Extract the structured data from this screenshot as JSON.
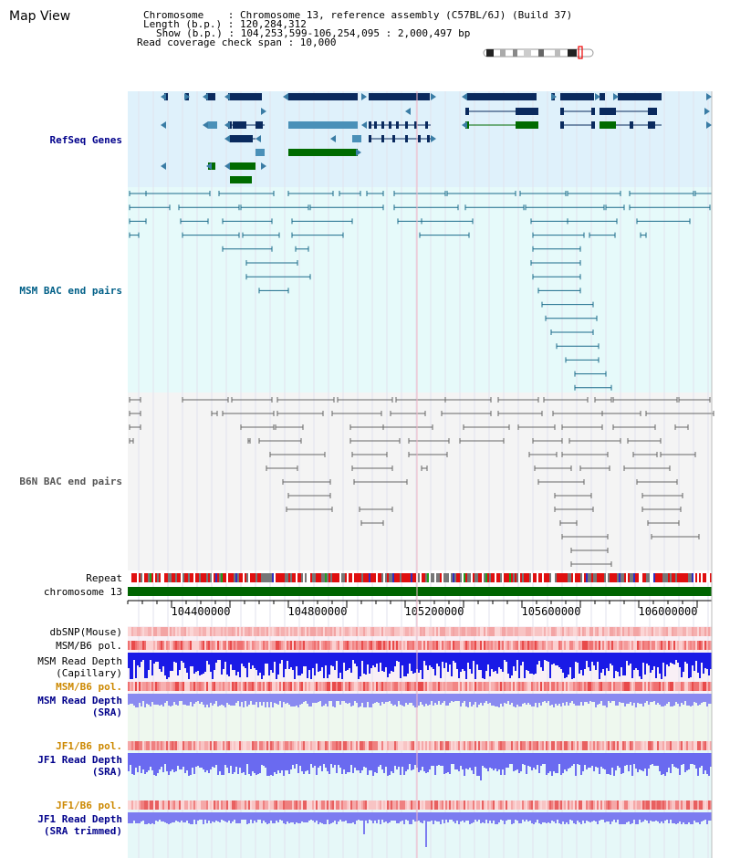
{
  "title": "Map View",
  "info": {
    "chromosome_key": "Chromosome",
    "chromosome_val": ": Chromosome 13, reference assembly (C57BL/6J) (Build 37)",
    "length_key": "Length (b.p.)",
    "length_val": ": 120,284,312",
    "show_key": "Show (b.p.)",
    "show_val": ": 104,253,599-106,254,095 : 2,000,497 bp",
    "coverage_line": "Read coverage check span : 10,000"
  },
  "tracks": {
    "refseq": "RefSeq Genes",
    "msm_bac": "MSM BAC end pairs",
    "b6n_bac": "B6N BAC end pairs",
    "repeat": "Repeat",
    "chromosome": "chromosome 13",
    "dbsnp": "dbSNP(Mouse)",
    "msm_b6_pol_1": "MSM/B6 pol.",
    "msm_read_depth_cap_1": "MSM Read Depth",
    "msm_read_depth_cap_2": "(Capillary)",
    "msm_b6_pol_2": "MSM/B6 pol.",
    "msm_read_depth_sra_1": "MSM Read Depth",
    "msm_read_depth_sra_2": "(SRA)",
    "jf1_b6_pol_1": "JF1/B6 pol.",
    "jf1_read_depth_1": "JF1 Read Depth",
    "jf1_read_depth_2": "(SRA)",
    "jf1_b6_pol_2": "JF1/B6 pol.",
    "jf1_read_depth_trim_1": "JF1 Read Depth",
    "jf1_read_depth_trim_2": "(SRA trimmed)"
  },
  "axis_ticks": [
    "104400000",
    "104800000",
    "105200000",
    "105600000",
    "106000000"
  ],
  "colors": {
    "navy_label": "#00008b",
    "teal_label": "#005f87",
    "gray_label": "#555555",
    "orange_label": "#cc8800",
    "refseq_band": "#dff1fb",
    "msm_band": "#e6fafa",
    "b6n_band": "#f4f4f4",
    "chromosome_bar": "#006400",
    "read_depth_blue": "#1a1ae6",
    "read_depth_light": "#7c7cf0"
  }
}
